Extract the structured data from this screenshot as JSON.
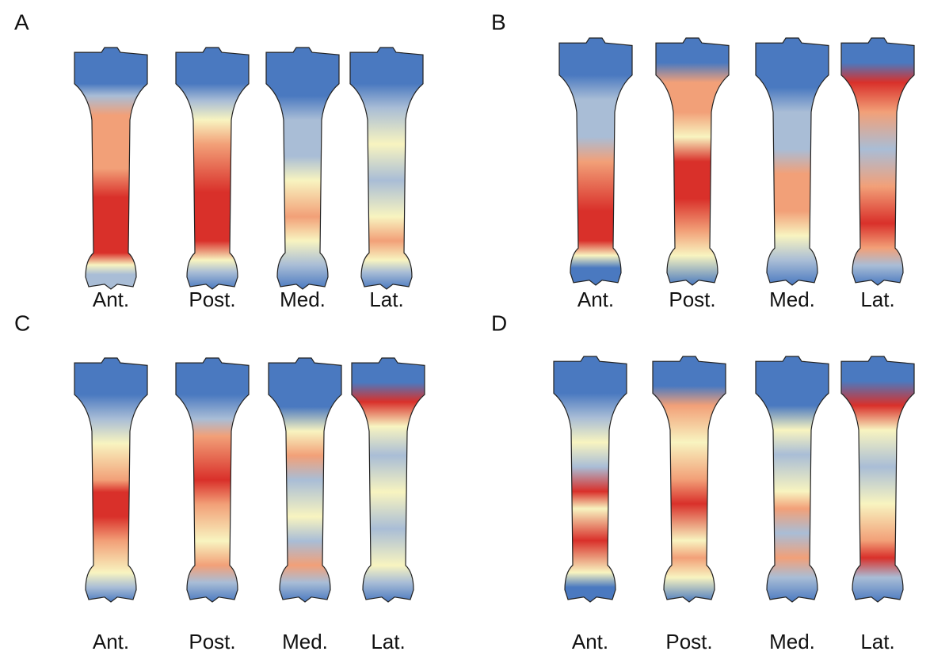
{
  "panels": [
    {
      "label": "A",
      "views": [
        "Ant.",
        "Post.",
        "Med.",
        "Lat."
      ]
    },
    {
      "label": "B",
      "views": [
        "Ant.",
        "Post.",
        "Med.",
        "Lat."
      ]
    },
    {
      "label": "C",
      "views": [
        "Ant.",
        "Post.",
        "Med.",
        "Lat."
      ]
    },
    {
      "label": "D",
      "views": [
        "Ant.",
        "Post.",
        "Med.",
        "Lat."
      ]
    }
  ]
}
